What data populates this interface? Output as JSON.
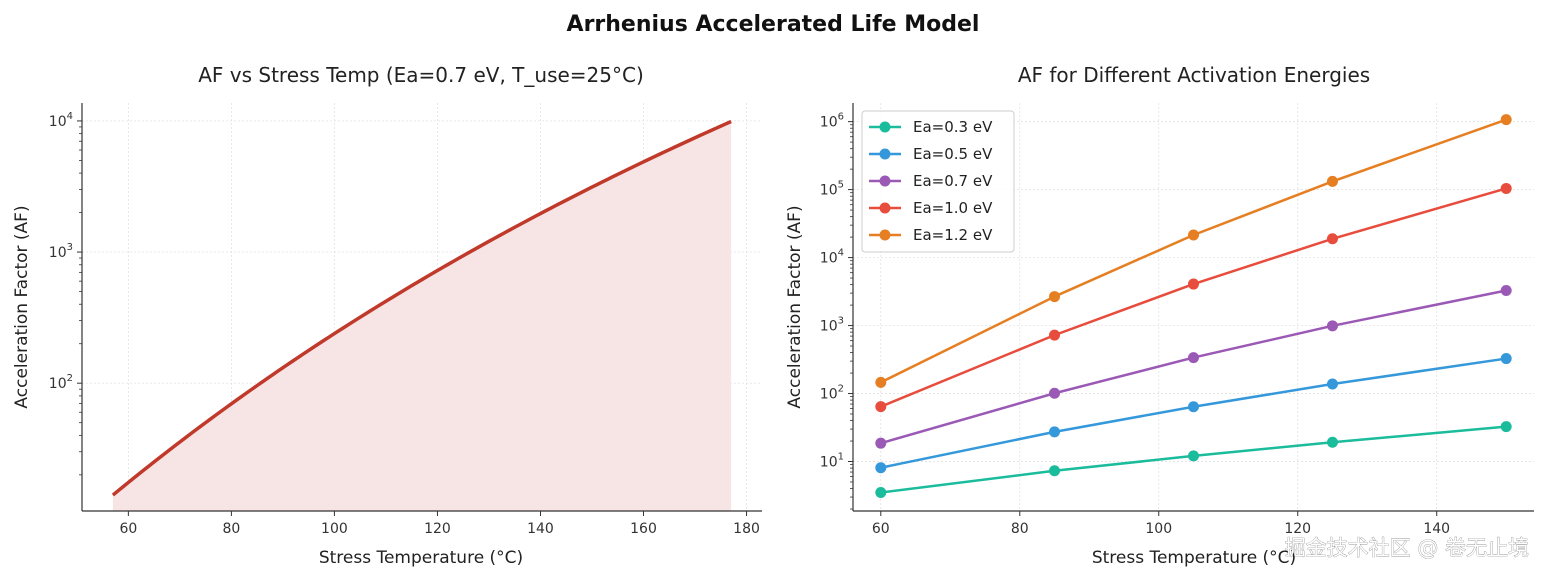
{
  "figure": {
    "suptitle": "Arrhenius Accelerated Life Model",
    "watermark": "掘金技术社区 @ 卷无止境"
  },
  "chart_data": [
    {
      "type": "area",
      "title": "AF vs Stress Temp  (Ea=0.7 eV, T_use=25°C)",
      "xlabel": "Stress Temperature (°C)",
      "ylabel": "Acceleration Factor (AF)",
      "x_ticks": [
        "60",
        "80",
        "100",
        "120",
        "140",
        "160",
        "180"
      ],
      "y_ticks": [
        {
          "exp": "2"
        },
        {
          "exp": "3"
        },
        {
          "exp": "4"
        }
      ],
      "y_scale": "log",
      "xlim": [
        51,
        183
      ],
      "ylim": [
        10.6,
        13700
      ],
      "grid": true,
      "line_color": "#c0392b",
      "fill_color": "#f6e2e2",
      "model": {
        "Ea_eV": 0.7,
        "T_use_C": 25,
        "x_start": 57,
        "x_end": 177
      }
    },
    {
      "type": "line",
      "title": "AF for Different Activation Energies",
      "xlabel": "Stress Temperature (°C)",
      "ylabel": "Acceleration Factor (AF)",
      "x_ticks": [
        "60",
        "80",
        "100",
        "120",
        "140"
      ],
      "y_ticks": [
        {
          "exp": "1"
        },
        {
          "exp": "2"
        },
        {
          "exp": "3"
        },
        {
          "exp": "4"
        },
        {
          "exp": "5"
        },
        {
          "exp": "6"
        }
      ],
      "y_scale": "log",
      "xlim": [
        56,
        154
      ],
      "ylim": [
        1.87,
        1880000
      ],
      "grid": true,
      "legend_position": "upper-left",
      "x": [
        60,
        85,
        105,
        125,
        150
      ],
      "series": [
        {
          "name": "Ea=0.3 eV",
          "color": "#1abc9c",
          "values": [
            3.5,
            7.3,
            12.1,
            19.2,
            32.6
          ]
        },
        {
          "name": "Ea=0.5 eV",
          "color": "#3498db",
          "values": [
            8.1,
            27.3,
            64.0,
            137.9,
            327.0
          ]
        },
        {
          "name": "Ea=0.7 eV",
          "color": "#9b59b6",
          "values": [
            18.6,
            101.0,
            338.0,
            991.0,
            3280.0
          ]
        },
        {
          "name": "Ea=1.0 eV",
          "color": "#e74c3c",
          "values": [
            64.1,
            723.0,
            4080.0,
            18900.0,
            104000.0
          ]
        },
        {
          "name": "Ea=1.2 eV",
          "color": "#e67e22",
          "values": [
            146.0,
            2670.0,
            21500.0,
            132000.0,
            1070000.0
          ]
        }
      ]
    }
  ]
}
